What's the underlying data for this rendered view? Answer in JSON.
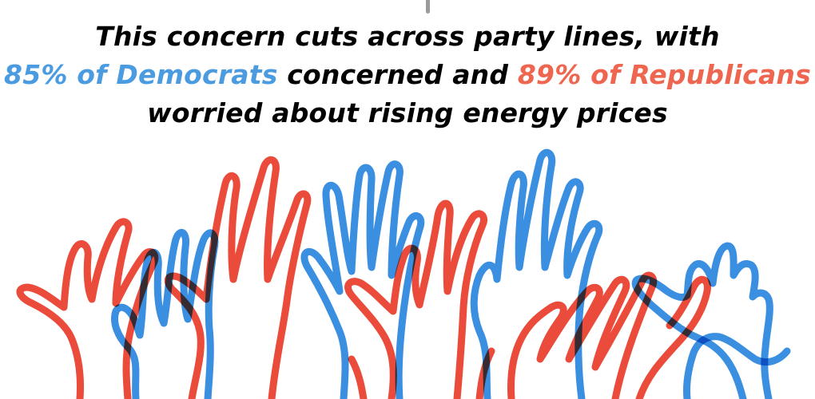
{
  "headline": {
    "line1": "This concern cuts across party lines, with",
    "dem_text": "85% of Democrats",
    "mid_text": " concerned and ",
    "rep_text": "89% of Republicans",
    "line3": "worried about rising energy prices"
  },
  "colors": {
    "democrats": "#4a9be0",
    "republicans": "#ee6650",
    "hand_blue": "#3b8fe0",
    "hand_red": "#ea4b3a"
  },
  "illustration": {
    "icon": "raised-hands-icon"
  }
}
